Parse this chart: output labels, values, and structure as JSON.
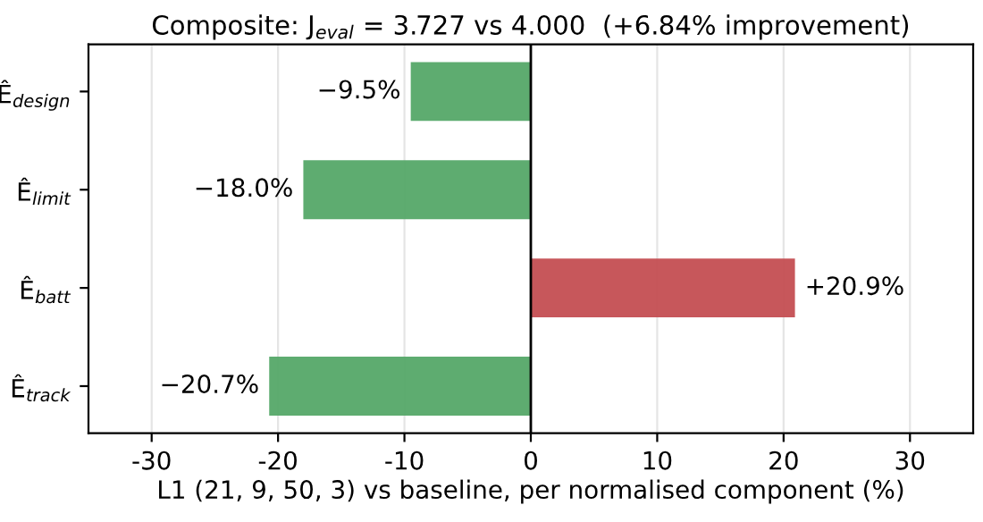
{
  "chart_data": {
    "type": "bar",
    "orientation": "horizontal",
    "title": "Composite: J$_{eval}$ = 3.727 vs 4.000  (+6.84% improvement)",
    "xlabel": "L1 (21, 9, 50, 3) vs baseline, per normalised component (%)",
    "categories": [
      "Ê$_{design}$",
      "Ê$_{limit}$",
      "Ê$_{batt}$",
      "Ê$_{track}$"
    ],
    "values": [
      -9.5,
      -18.0,
      20.9,
      -20.7
    ],
    "colors": [
      "#55a868",
      "#55a868",
      "#c44e52",
      "#55a868"
    ],
    "value_labels": [
      "−9.5%",
      "−18.0%",
      "+20.9%",
      "−20.7%"
    ],
    "xlim": [
      -35,
      35
    ],
    "xticks": [
      -30,
      -20,
      -10,
      0,
      10,
      20,
      30
    ],
    "ref_lines": [
      {
        "axis": "x",
        "value": 0,
        "color": "#000000"
      }
    ],
    "grid": "x"
  }
}
